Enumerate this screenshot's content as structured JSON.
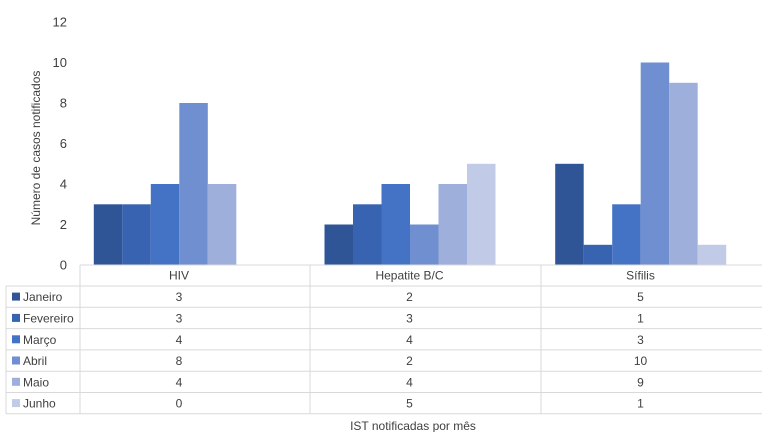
{
  "chart_data": {
    "type": "bar",
    "categories": [
      "HIV",
      "Hepatite B/C",
      "Sífilis"
    ],
    "series": [
      {
        "name": "Janeiro",
        "values": [
          3,
          2,
          5
        ]
      },
      {
        "name": "Fevereiro",
        "values": [
          3,
          3,
          1
        ]
      },
      {
        "name": "Março",
        "values": [
          4,
          4,
          3
        ]
      },
      {
        "name": "Abril",
        "values": [
          8,
          2,
          10
        ]
      },
      {
        "name": "Maio",
        "values": [
          4,
          4,
          9
        ]
      },
      {
        "name": "Junho",
        "values": [
          0,
          5,
          1
        ]
      }
    ],
    "colors": [
      "#2f5597",
      "#3763b0",
      "#4472c4",
      "#6f8fd0",
      "#9dafda",
      "#c1cbe8"
    ],
    "ylabel": "Número de casos notificados",
    "xlabel": "IST notificadas por mês",
    "yticks": [
      "0",
      "2",
      "4",
      "6",
      "8",
      "10",
      "12"
    ],
    "ylim": [
      0,
      12
    ],
    "grid": false,
    "legend": "data-table"
  }
}
